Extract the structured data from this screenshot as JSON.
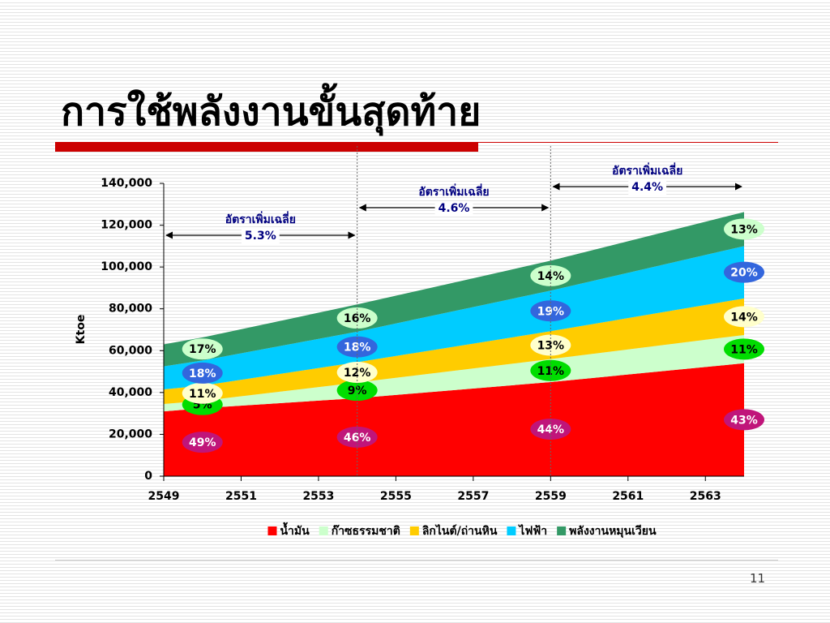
{
  "title": "การใช้พลังงานขั้นสุดท้าย",
  "page_number": "11",
  "chart_data": {
    "type": "stacked-area",
    "y_label": "Ktoe",
    "x": [
      2549,
      2550,
      2554,
      2559,
      2564
    ],
    "xlim": [
      2549,
      2564
    ],
    "xticks": [
      2549,
      2551,
      2553,
      2555,
      2557,
      2559,
      2561,
      2563
    ],
    "ylim": [
      0,
      140000
    ],
    "yticks": [
      0,
      {
        "value": 20000,
        "label": "20,000"
      },
      {
        "value": 40000,
        "label": "40,000"
      },
      {
        "value": 60000,
        "label": "60,000"
      },
      {
        "value": 80000,
        "label": "80,000"
      },
      {
        "value": 100000,
        "label": "100,000"
      },
      {
        "value": 120000,
        "label": "120,000"
      },
      {
        "value": 140000,
        "label": "140,000"
      }
    ],
    "series": [
      {
        "name": "น้ำมัน",
        "color": "#ff0000",
        "badge_color": "#c0157a",
        "values": [
          31000,
          32500,
          37300,
          45000,
          54000
        ],
        "share_labels": [
          null,
          "49%",
          "46%",
          "44%",
          "43%"
        ]
      },
      {
        "name": "ก๊าซธรรมชาติ",
        "color": "#ccffcc",
        "badge_color": "#00dd00",
        "values": [
          3500,
          3500,
          7500,
          11000,
          13500
        ],
        "share_labels": [
          null,
          "5%",
          "9%",
          "11%",
          "11%"
        ]
      },
      {
        "name": "ลิกไนต์/ถ่านหิน",
        "color": "#ffcc00",
        "badge_color": "#ffffcc",
        "values": [
          7000,
          7300,
          9700,
          13300,
          17500
        ],
        "share_labels": [
          null,
          "11%",
          "12%",
          "13%",
          "14%"
        ]
      },
      {
        "name": "ไฟฟ้า",
        "color": "#00ccff",
        "badge_color": "#3366dd",
        "values": [
          11000,
          12000,
          14600,
          19400,
          25000
        ],
        "share_labels": [
          null,
          "18%",
          "18%",
          "19%",
          "20%"
        ]
      },
      {
        "name": "พลังงานหมุนเวียน",
        "color": "#339966",
        "badge_color": "#ccffcc",
        "values": [
          10500,
          11000,
          13000,
          14300,
          16300
        ],
        "share_labels": [
          null,
          "17%",
          "16%",
          "14%",
          "13%"
        ]
      }
    ],
    "annotations": [
      {
        "text": "อัตราเพิ่มเฉลี่ย",
        "rate": "5.3%",
        "from": 2549,
        "to": 2554
      },
      {
        "text": "อัตราเพิ่มเฉลี่ย",
        "rate": "4.6%",
        "from": 2554,
        "to": 2559
      },
      {
        "text": "อัตราเพิ่มเฉลี่ย",
        "rate": "4.4%",
        "from": 2559,
        "to": 2564
      }
    ],
    "legend": "bottom"
  }
}
